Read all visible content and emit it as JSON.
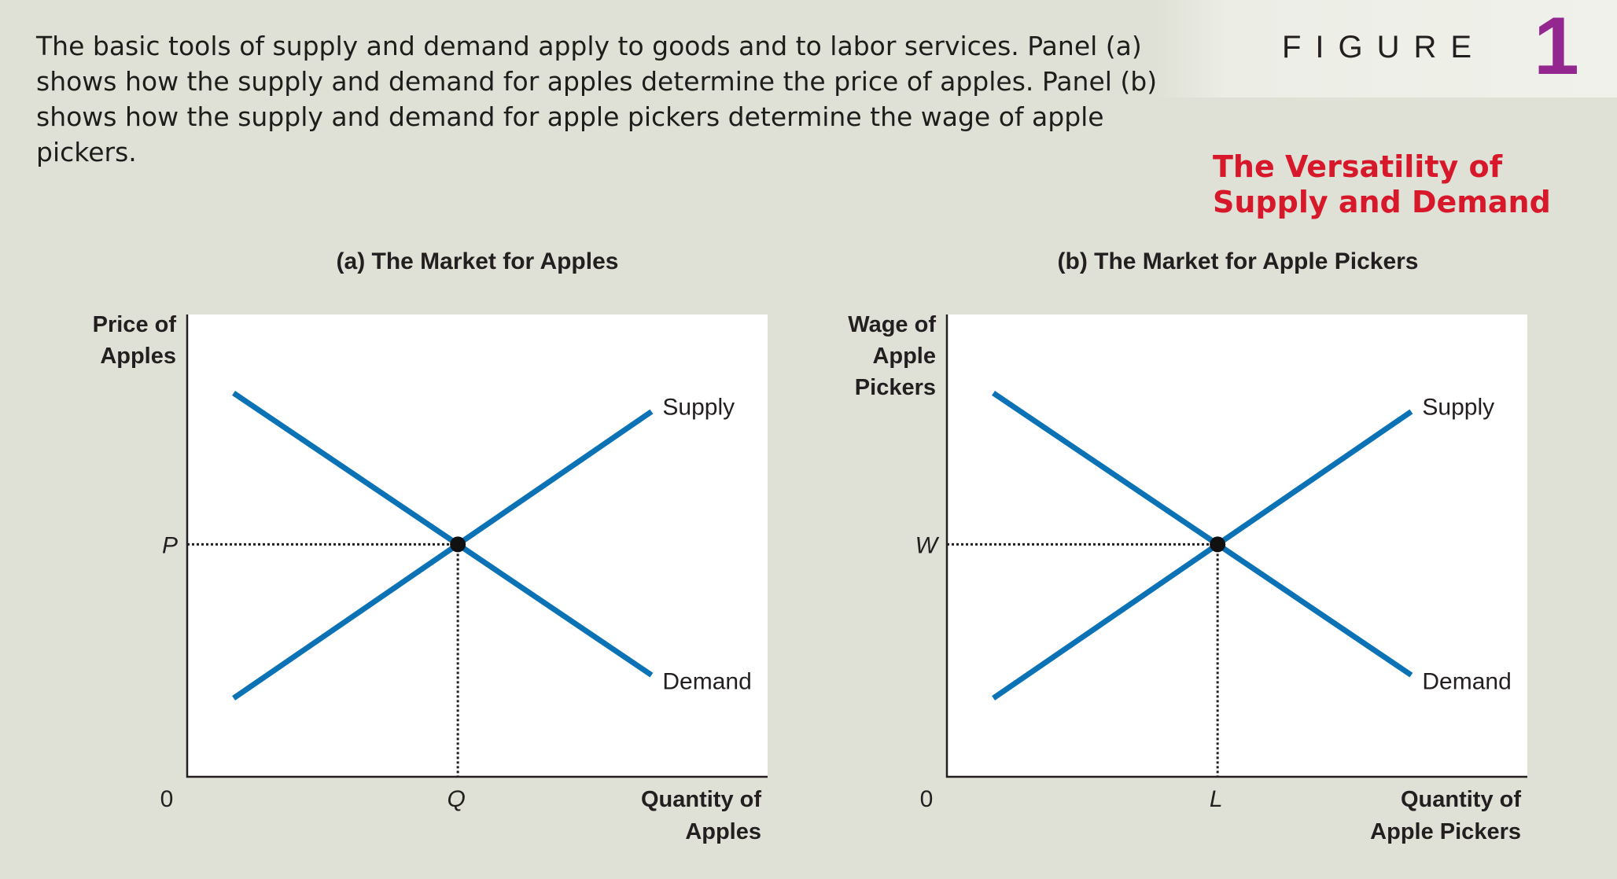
{
  "caption": "The basic tools of supply and demand apply to goods and to labor services. Panel (a) shows how the supply and demand for apples determine the price of apples. Panel (b) shows how the supply and demand for apple pickers determine the wage of apple pickers.",
  "figure": {
    "label": "FIGURE",
    "number": "1",
    "title_line1": "The Versatility of",
    "title_line2": "Supply and Demand"
  },
  "colors": {
    "curve": "#0a72b5",
    "title_red": "#d7182a",
    "figure_purple": "#93278f",
    "background": "#dfe1d6"
  },
  "chart_data": [
    {
      "type": "line",
      "title": "(a) The Market for Apples",
      "ylabel": [
        "Price of",
        "Apples"
      ],
      "xlabel": [
        "Quantity of",
        "Apples"
      ],
      "origin_label": "0",
      "equilibrium": {
        "x_label": "Q",
        "y_label": "P"
      },
      "series": [
        {
          "name": "Supply",
          "x": [
            0.08,
            0.8
          ],
          "y": [
            0.17,
            0.79
          ]
        },
        {
          "name": "Demand",
          "x": [
            0.08,
            0.8
          ],
          "y": [
            0.83,
            0.22
          ]
        }
      ],
      "xlim": [
        0,
        1
      ],
      "ylim": [
        0,
        1
      ],
      "grid": false
    },
    {
      "type": "line",
      "title": "(b) The Market for Apple Pickers",
      "ylabel": [
        "Wage of",
        "Apple",
        "Pickers"
      ],
      "xlabel": [
        "Quantity of",
        "Apple Pickers"
      ],
      "origin_label": "0",
      "equilibrium": {
        "x_label": "L",
        "y_label": "W"
      },
      "series": [
        {
          "name": "Supply",
          "x": [
            0.08,
            0.8
          ],
          "y": [
            0.17,
            0.79
          ]
        },
        {
          "name": "Demand",
          "x": [
            0.08,
            0.8
          ],
          "y": [
            0.83,
            0.22
          ]
        }
      ],
      "xlim": [
        0,
        1
      ],
      "ylim": [
        0,
        1
      ],
      "grid": false
    }
  ]
}
